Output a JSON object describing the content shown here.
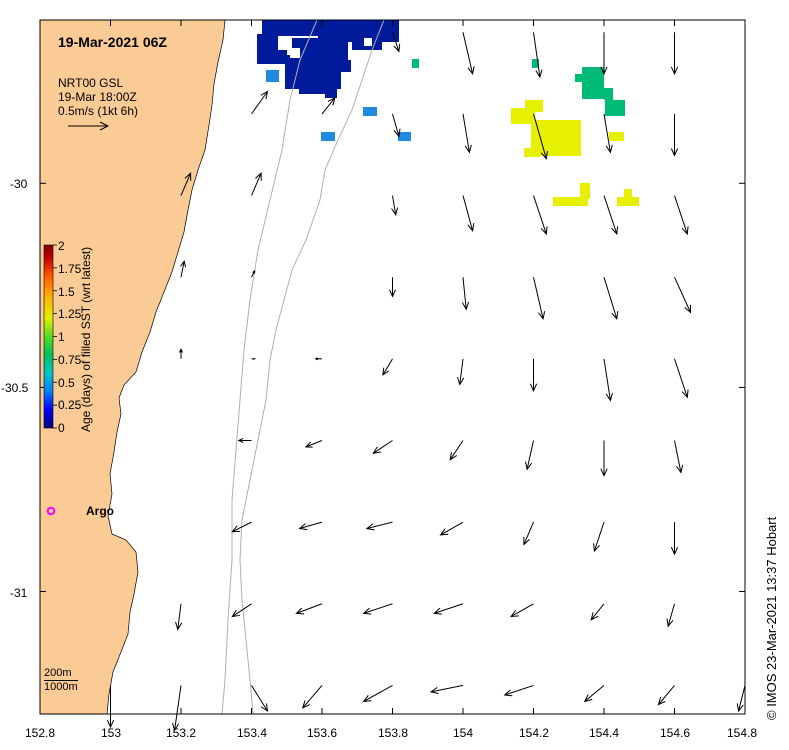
{
  "title": "19-Mar-2021 06Z",
  "vector_legend": {
    "line1": "NRT00 GSL",
    "line2": "19-Mar 18:00Z",
    "line3": "0.5m/s (1kt 6h)"
  },
  "colorbar": {
    "title": "Age (days) of filled SST (wrt latest)",
    "ticks": [
      "2",
      "1.75",
      "1.5",
      "1.25",
      "1",
      "0.75",
      "0.5",
      "0.25",
      "0"
    ],
    "range": [
      0,
      2
    ],
    "colors": [
      "#00007f",
      "#0000ff",
      "#007fff",
      "#00c8c8",
      "#00c060",
      "#55dd22",
      "#e0f000",
      "#ffb000",
      "#ff5000",
      "#c00000",
      "#800000"
    ]
  },
  "axes": {
    "x_ticks": [
      "152.8",
      "153",
      "153.2",
      "153.4",
      "153.6",
      "153.8",
      "154",
      "154.2",
      "154.4",
      "154.6",
      "154.8"
    ],
    "x_values": [
      152.8,
      153.0,
      153.2,
      153.4,
      153.6,
      153.8,
      154.0,
      154.2,
      154.4,
      154.6,
      154.8
    ],
    "y_ticks": [
      "-30",
      "-30.5",
      "-31"
    ],
    "y_values": [
      -30.0,
      -30.5,
      -31.0
    ],
    "lon_range": [
      152.8,
      154.8
    ],
    "lat_range": [
      -31.3,
      -29.6
    ]
  },
  "isobath_labels": {
    "shallow": "200m",
    "deep": "1000m"
  },
  "argo": {
    "label": "Argo",
    "lon": 152.83,
    "lat": -30.81,
    "color": "#ff00ff"
  },
  "credit": "© IMOS 23-Mar-2021 13:37 Hobart",
  "colors": {
    "land": "#fbcb96",
    "isobath": "#b0b0b0",
    "age_0": "#001a9c",
    "age_03": "#1f8ae0",
    "age_09": "#00bb77",
    "age_15": "#e6f000"
  },
  "current_vectors": [
    {
      "lon": 153.0,
      "lat": -31.23,
      "u": 0.0,
      "v": -0.13
    },
    {
      "lon": 153.2,
      "lat": -31.23,
      "u": -0.02,
      "v": -0.14
    },
    {
      "lon": 153.4,
      "lat": -31.23,
      "u": 0.05,
      "v": -0.08
    },
    {
      "lon": 153.6,
      "lat": -31.23,
      "u": -0.06,
      "v": -0.07
    },
    {
      "lon": 153.8,
      "lat": -31.23,
      "u": -0.09,
      "v": -0.05
    },
    {
      "lon": 154.0,
      "lat": -31.23,
      "u": -0.1,
      "v": -0.02
    },
    {
      "lon": 154.2,
      "lat": -31.23,
      "u": -0.09,
      "v": -0.03
    },
    {
      "lon": 154.4,
      "lat": -31.23,
      "u": -0.06,
      "v": -0.05
    },
    {
      "lon": 154.6,
      "lat": -31.23,
      "u": -0.05,
      "v": -0.06
    },
    {
      "lon": 154.8,
      "lat": -31.23,
      "u": -0.02,
      "v": -0.08
    },
    {
      "lon": 153.2,
      "lat": -31.03,
      "u": -0.01,
      "v": -0.08
    },
    {
      "lon": 153.4,
      "lat": -31.03,
      "u": -0.06,
      "v": -0.04
    },
    {
      "lon": 153.6,
      "lat": -31.03,
      "u": -0.08,
      "v": -0.03
    },
    {
      "lon": 153.8,
      "lat": -31.03,
      "u": -0.09,
      "v": -0.03
    },
    {
      "lon": 154.0,
      "lat": -31.03,
      "u": -0.09,
      "v": -0.03
    },
    {
      "lon": 154.2,
      "lat": -31.03,
      "u": -0.07,
      "v": -0.04
    },
    {
      "lon": 154.4,
      "lat": -31.03,
      "u": -0.04,
      "v": -0.05
    },
    {
      "lon": 154.6,
      "lat": -31.03,
      "u": -0.02,
      "v": -0.07
    },
    {
      "lon": 153.4,
      "lat": -30.83,
      "u": -0.06,
      "v": -0.03
    },
    {
      "lon": 153.6,
      "lat": -30.83,
      "u": -0.07,
      "v": -0.02
    },
    {
      "lon": 153.8,
      "lat": -30.83,
      "u": -0.08,
      "v": -0.02
    },
    {
      "lon": 154.0,
      "lat": -30.83,
      "u": -0.07,
      "v": -0.04
    },
    {
      "lon": 154.2,
      "lat": -30.83,
      "u": -0.03,
      "v": -0.07
    },
    {
      "lon": 154.4,
      "lat": -30.83,
      "u": -0.03,
      "v": -0.09
    },
    {
      "lon": 154.6,
      "lat": -30.83,
      "u": 0.0,
      "v": -0.1
    },
    {
      "lon": 153.4,
      "lat": -30.63,
      "u": -0.04,
      "v": 0.0
    },
    {
      "lon": 153.6,
      "lat": -30.63,
      "u": -0.05,
      "v": -0.02
    },
    {
      "lon": 153.8,
      "lat": -30.63,
      "u": -0.06,
      "v": -0.04
    },
    {
      "lon": 154.0,
      "lat": -30.63,
      "u": -0.04,
      "v": -0.06
    },
    {
      "lon": 154.2,
      "lat": -30.63,
      "u": -0.02,
      "v": -0.09
    },
    {
      "lon": 154.4,
      "lat": -30.63,
      "u": 0.0,
      "v": -0.11
    },
    {
      "lon": 154.6,
      "lat": -30.63,
      "u": 0.02,
      "v": -0.1
    },
    {
      "lon": 153.2,
      "lat": -30.43,
      "u": 0.0,
      "v": 0.03
    },
    {
      "lon": 153.4,
      "lat": -30.43,
      "u": 0.01,
      "v": 0.0
    },
    {
      "lon": 153.6,
      "lat": -30.43,
      "u": -0.02,
      "v": 0.0
    },
    {
      "lon": 153.8,
      "lat": -30.43,
      "u": -0.03,
      "v": -0.05
    },
    {
      "lon": 154.0,
      "lat": -30.43,
      "u": -0.01,
      "v": -0.08
    },
    {
      "lon": 154.2,
      "lat": -30.43,
      "u": 0.0,
      "v": -0.1
    },
    {
      "lon": 154.4,
      "lat": -30.43,
      "u": 0.02,
      "v": -0.13
    },
    {
      "lon": 154.6,
      "lat": -30.43,
      "u": 0.04,
      "v": -0.12
    },
    {
      "lon": 153.2,
      "lat": -30.23,
      "u": 0.01,
      "v": 0.05
    },
    {
      "lon": 153.4,
      "lat": -30.23,
      "u": 0.01,
      "v": 0.02
    },
    {
      "lon": 153.8,
      "lat": -30.23,
      "u": 0.0,
      "v": -0.06
    },
    {
      "lon": 154.0,
      "lat": -30.23,
      "u": 0.01,
      "v": -0.1
    },
    {
      "lon": 154.2,
      "lat": -30.23,
      "u": 0.03,
      "v": -0.13
    },
    {
      "lon": 154.4,
      "lat": -30.23,
      "u": 0.04,
      "v": -0.13
    },
    {
      "lon": 154.6,
      "lat": -30.23,
      "u": 0.05,
      "v": -0.11
    },
    {
      "lon": 153.2,
      "lat": -30.03,
      "u": 0.03,
      "v": 0.07
    },
    {
      "lon": 153.4,
      "lat": -30.03,
      "u": 0.03,
      "v": 0.07
    },
    {
      "lon": 153.8,
      "lat": -30.03,
      "u": 0.01,
      "v": -0.06
    },
    {
      "lon": 154.0,
      "lat": -30.03,
      "u": 0.03,
      "v": -0.11
    },
    {
      "lon": 154.2,
      "lat": -30.03,
      "u": 0.04,
      "v": -0.12
    },
    {
      "lon": 154.4,
      "lat": -30.03,
      "u": 0.04,
      "v": -0.12
    },
    {
      "lon": 154.6,
      "lat": -30.03,
      "u": 0.04,
      "v": -0.12
    },
    {
      "lon": 153.4,
      "lat": -29.83,
      "u": 0.05,
      "v": 0.07
    },
    {
      "lon": 153.6,
      "lat": -29.83,
      "u": 0.04,
      "v": 0.05
    },
    {
      "lon": 153.8,
      "lat": -29.83,
      "u": 0.02,
      "v": -0.07
    },
    {
      "lon": 154.0,
      "lat": -29.83,
      "u": 0.02,
      "v": -0.12
    },
    {
      "lon": 154.2,
      "lat": -29.83,
      "u": 0.04,
      "v": -0.14
    },
    {
      "lon": 154.4,
      "lat": -29.83,
      "u": 0.02,
      "v": -0.12
    },
    {
      "lon": 154.6,
      "lat": -29.83,
      "u": 0.0,
      "v": -0.13
    },
    {
      "lon": 153.8,
      "lat": -29.63,
      "u": 0.02,
      "v": -0.06
    },
    {
      "lon": 154.0,
      "lat": -29.63,
      "u": 0.03,
      "v": -0.13
    },
    {
      "lon": 154.2,
      "lat": -29.63,
      "u": 0.02,
      "v": -0.14
    },
    {
      "lon": 154.4,
      "lat": -29.63,
      "u": 0.0,
      "v": -0.13
    },
    {
      "lon": 154.6,
      "lat": -29.63,
      "u": 0.0,
      "v": -0.13
    }
  ]
}
